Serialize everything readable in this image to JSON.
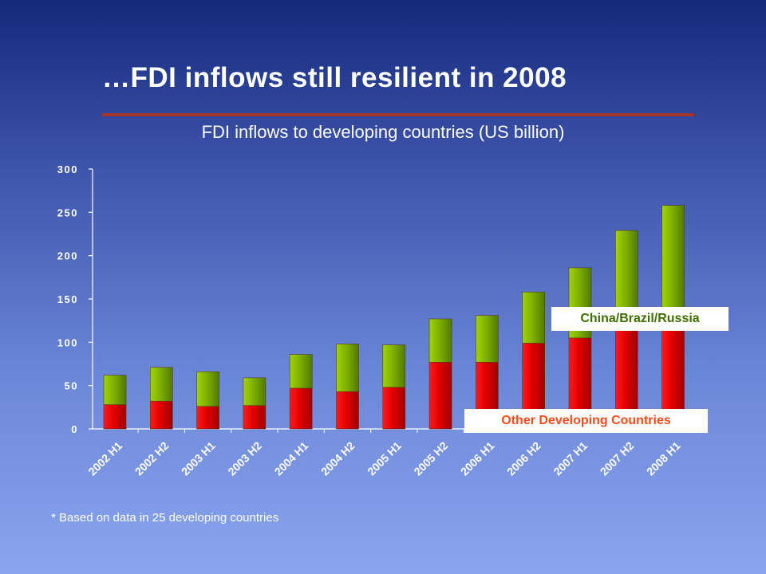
{
  "slide": {
    "title": "…FDI inflows still resilient in 2008",
    "footnote": "* Based on data in 25 developing countries"
  },
  "chart_data": {
    "type": "bar",
    "stacked": true,
    "title": "FDI inflows to developing countries (US billion)",
    "categories": [
      "2002 H1",
      "2002 H2",
      "2003 H1",
      "2003 H2",
      "2004 H1",
      "2004 H2",
      "2005 H1",
      "2005 H2",
      "2006 H1",
      "2006 H2",
      "2007 H1",
      "2007 H2",
      "2008 H1"
    ],
    "series": [
      {
        "name": "Other Developing Countries",
        "color": "#e00000",
        "values": [
          28,
          32,
          26,
          27,
          47,
          43,
          48,
          77,
          77,
          99,
          105,
          115,
          115
        ]
      },
      {
        "name": "China/Brazil/Russia",
        "color": "#7fb000",
        "values": [
          34,
          39,
          40,
          32,
          39,
          55,
          49,
          50,
          54,
          59,
          81,
          114,
          143
        ]
      }
    ],
    "ylim": [
      0,
      300
    ],
    "yticks": [
      0,
      50,
      100,
      150,
      200,
      250,
      300
    ],
    "grid": false,
    "legend": "inline-labels"
  }
}
